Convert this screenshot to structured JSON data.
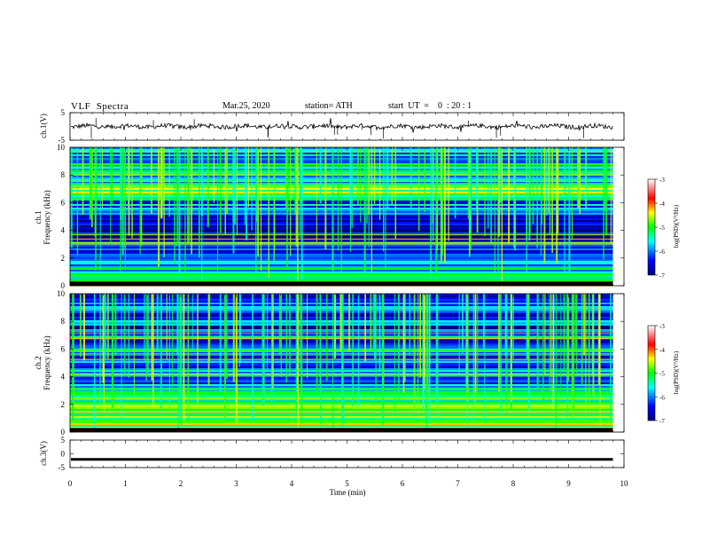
{
  "header": {
    "title": "VLF  Spectra",
    "date": "Mar.25, 2020",
    "station": "station= ATH",
    "start_ut": "start  UT  =    0  : 20 : 1"
  },
  "panels": {
    "ch1_wave_ylabel": "ch.1(V)",
    "ch1_spec_ylabel": "ch.1\nFrequency  (kHz)",
    "ch2_spec_ylabel": "ch.2\nFrequency  (kHz)",
    "ch3_wave_ylabel": "ch.3(V)",
    "xlabel": "Time  (min)",
    "colorbar_label": "log(PSD)(V²/Hz)"
  },
  "colors": {
    "black": "#000000",
    "navy": "#00007f",
    "blue": "#0000ff",
    "cyan": "#00ffff",
    "green": "#00ff00",
    "yellow": "#ffff00",
    "red": "#ff0000",
    "white": "#ffffff"
  },
  "chart_data": [
    {
      "type": "line",
      "name": "ch1-waveform",
      "xlim": [
        0,
        10
      ],
      "ylim": [
        -5,
        5
      ],
      "yticks": [
        5,
        -5
      ],
      "description_of_signal": "noisy trace centered near 0 V with occasional spikes",
      "x_end": 9.8
    },
    {
      "type": "heatmap",
      "name": "ch1-spectrogram",
      "xlim": [
        0,
        10
      ],
      "ylim": [
        0,
        10
      ],
      "yticks": [
        0,
        2,
        4,
        6,
        8,
        10
      ],
      "colorbar": {
        "min": -7,
        "max": -3,
        "ticks": [
          -3,
          -4,
          -5,
          -6,
          -7
        ]
      },
      "bands_khz": [
        {
          "from": 0,
          "to": 0.3,
          "level": -7
        },
        {
          "from": 0.3,
          "to": 2.4,
          "level": -5.6
        },
        {
          "from": 2.4,
          "to": 3.2,
          "level": -6.2
        },
        {
          "from": 3.2,
          "to": 5.2,
          "level": -6.8
        },
        {
          "from": 5.2,
          "to": 6.2,
          "level": -6.0
        },
        {
          "from": 6.2,
          "to": 7.2,
          "level": -5.0
        },
        {
          "from": 7.2,
          "to": 10,
          "level": -5.6
        }
      ],
      "x_end": 9.8
    },
    {
      "type": "heatmap",
      "name": "ch2-spectrogram",
      "xlim": [
        0,
        10
      ],
      "ylim": [
        0,
        10
      ],
      "yticks": [
        0,
        2,
        4,
        6,
        8,
        10
      ],
      "colorbar": {
        "min": -7,
        "max": -3,
        "ticks": [
          -3,
          -4,
          -5,
          -6,
          -7
        ]
      },
      "bands_khz": [
        {
          "from": 0,
          "to": 0.3,
          "level": -7
        },
        {
          "from": 0.3,
          "to": 2.0,
          "level": -4.8
        },
        {
          "from": 2.0,
          "to": 3.5,
          "level": -5.5
        },
        {
          "from": 3.5,
          "to": 6.5,
          "level": -6.0
        },
        {
          "from": 6.5,
          "to": 10,
          "level": -6.3
        }
      ],
      "x_end": 9.8
    },
    {
      "type": "line",
      "name": "ch3-waveform",
      "xlim": [
        0,
        10
      ],
      "ylim": [
        -5,
        5
      ],
      "yticks": [
        5,
        0,
        -5
      ],
      "constant_value": -2,
      "x_end": 9.8
    }
  ],
  "x_axis": {
    "ticks": [
      0,
      1,
      2,
      3,
      4,
      5,
      6,
      7,
      8,
      9,
      10
    ]
  }
}
